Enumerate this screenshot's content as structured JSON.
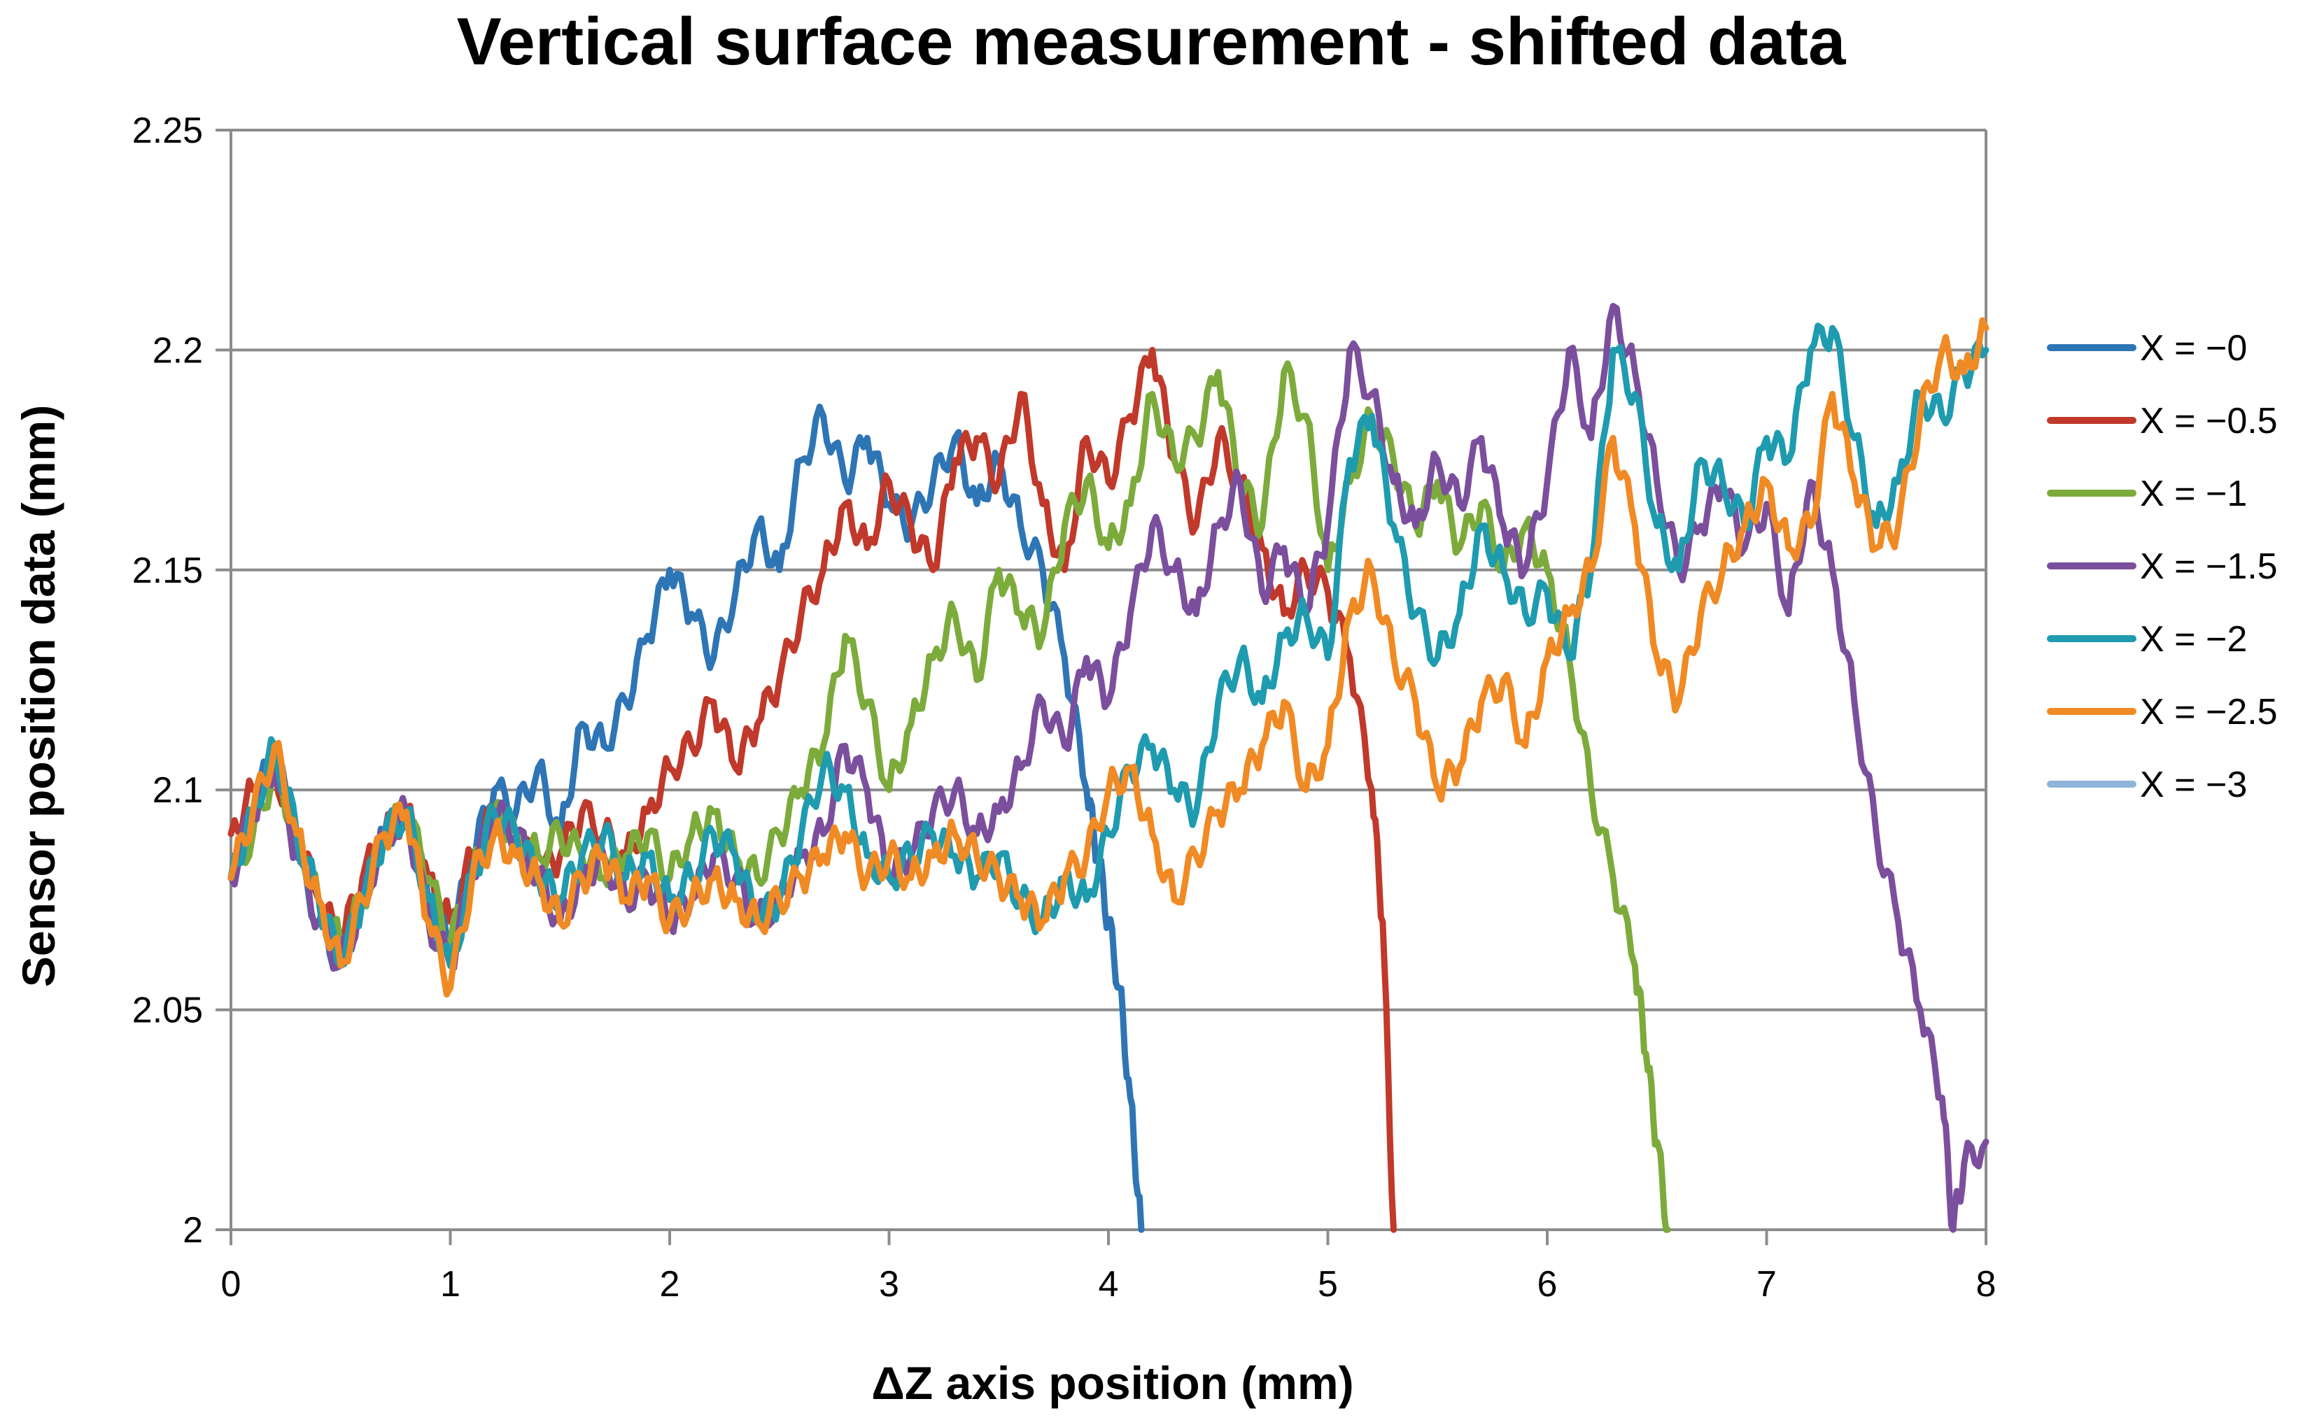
{
  "chart_data": {
    "type": "line",
    "title": "Vertical surface measurement - shifted data",
    "xlabel": "ΔZ axis position (mm)",
    "ylabel": "Sensor position data (mm)",
    "xlim": [
      0,
      8
    ],
    "ylim": [
      2,
      2.25
    ],
    "xticks": [
      0,
      1,
      2,
      3,
      4,
      5,
      6,
      7,
      8
    ],
    "yticks": [
      2,
      2.05,
      2.1,
      2.15,
      2.2,
      2.25
    ],
    "ytick_labels": [
      "2",
      "2.05",
      "2.1",
      "2.15",
      "2.2",
      "2.25"
    ],
    "grid": true,
    "legend_position": "right",
    "series": [
      {
        "name": "X = −0",
        "color": "#2e75b6",
        "x": [
          0,
          0.1,
          0.2,
          0.3,
          0.4,
          0.5,
          0.6,
          0.7,
          0.8,
          0.9,
          1.0,
          1.1,
          1.2,
          1.3,
          1.4,
          1.5,
          1.6,
          1.7,
          1.8,
          1.9,
          2.0,
          2.1,
          2.2,
          2.3,
          2.4,
          2.5,
          2.6,
          2.7,
          2.8,
          2.9,
          3.0,
          3.1,
          3.2,
          3.3,
          3.4,
          3.5,
          3.6,
          3.7,
          3.8,
          3.9,
          3.95,
          4.0,
          4.05,
          4.1,
          4.15
        ],
        "y": [
          2.08,
          2.095,
          2.11,
          2.085,
          2.07,
          2.06,
          2.075,
          2.09,
          2.095,
          2.075,
          2.065,
          2.085,
          2.1,
          2.095,
          2.105,
          2.09,
          2.115,
          2.11,
          2.12,
          2.135,
          2.15,
          2.14,
          2.13,
          2.145,
          2.16,
          2.15,
          2.175,
          2.185,
          2.17,
          2.18,
          2.165,
          2.16,
          2.17,
          2.18,
          2.165,
          2.175,
          2.16,
          2.15,
          2.13,
          2.1,
          2.085,
          2.07,
          2.055,
          2.03,
          2.0
        ]
      },
      {
        "name": "X = −0.5",
        "color": "#c0392b",
        "x": [
          0,
          0.1,
          0.2,
          0.3,
          0.4,
          0.5,
          0.6,
          0.7,
          0.8,
          0.9,
          1.0,
          1.1,
          1.2,
          1.3,
          1.4,
          1.5,
          1.6,
          1.7,
          1.8,
          1.9,
          2.0,
          2.1,
          2.2,
          2.3,
          2.4,
          2.5,
          2.6,
          2.7,
          2.8,
          2.9,
          3.0,
          3.1,
          3.2,
          3.3,
          3.4,
          3.5,
          3.6,
          3.7,
          3.8,
          3.9,
          4.0,
          4.1,
          4.2,
          4.3,
          4.4,
          4.5,
          4.6,
          4.7,
          4.8,
          4.9,
          5.0,
          5.1,
          5.2,
          5.25,
          5.3
        ],
        "y": [
          2.09,
          2.1,
          2.105,
          2.09,
          2.075,
          2.065,
          2.08,
          2.09,
          2.095,
          2.08,
          2.07,
          2.085,
          2.095,
          2.09,
          2.08,
          2.085,
          2.095,
          2.09,
          2.085,
          2.095,
          2.105,
          2.11,
          2.12,
          2.105,
          2.115,
          2.125,
          2.14,
          2.15,
          2.165,
          2.155,
          2.17,
          2.16,
          2.15,
          2.175,
          2.18,
          2.17,
          2.19,
          2.165,
          2.15,
          2.18,
          2.17,
          2.185,
          2.2,
          2.175,
          2.16,
          2.18,
          2.17,
          2.155,
          2.14,
          2.15,
          2.145,
          2.13,
          2.1,
          2.07,
          2.0
        ]
      },
      {
        "name": "X = −1",
        "color": "#7cab3c",
        "x": [
          0,
          0.1,
          0.2,
          0.3,
          0.4,
          0.5,
          0.6,
          0.7,
          0.8,
          0.9,
          1.0,
          1.1,
          1.2,
          1.3,
          1.4,
          1.5,
          1.6,
          1.7,
          1.8,
          1.9,
          2.0,
          2.1,
          2.2,
          2.3,
          2.4,
          2.5,
          2.6,
          2.7,
          2.8,
          2.9,
          3.0,
          3.1,
          3.2,
          3.3,
          3.4,
          3.5,
          3.6,
          3.7,
          3.8,
          3.9,
          4.0,
          4.1,
          4.2,
          4.3,
          4.4,
          4.5,
          4.6,
          4.7,
          4.8,
          4.9,
          5.0,
          5.1,
          5.2,
          5.3,
          5.4,
          5.5,
          5.6,
          5.7,
          5.8,
          5.9,
          6.0,
          6.1,
          6.2,
          6.3,
          6.4,
          6.45,
          6.5,
          6.55
        ],
        "y": [
          2.08,
          2.09,
          2.105,
          2.09,
          2.075,
          2.065,
          2.075,
          2.09,
          2.095,
          2.08,
          2.065,
          2.08,
          2.095,
          2.09,
          2.085,
          2.09,
          2.085,
          2.08,
          2.085,
          2.09,
          2.08,
          2.09,
          2.095,
          2.085,
          2.08,
          2.09,
          2.1,
          2.11,
          2.135,
          2.12,
          2.1,
          2.115,
          2.13,
          2.14,
          2.125,
          2.15,
          2.14,
          2.135,
          2.16,
          2.17,
          2.155,
          2.165,
          2.19,
          2.175,
          2.18,
          2.195,
          2.17,
          2.16,
          2.195,
          2.185,
          2.15,
          2.17,
          2.185,
          2.175,
          2.16,
          2.17,
          2.155,
          2.165,
          2.15,
          2.16,
          2.15,
          2.13,
          2.1,
          2.08,
          2.06,
          2.04,
          2.02,
          2.0
        ]
      },
      {
        "name": "X = −1.5",
        "color": "#7b4f9d",
        "x": [
          0,
          0.1,
          0.2,
          0.3,
          0.4,
          0.5,
          0.6,
          0.7,
          0.8,
          0.9,
          1.0,
          1.1,
          1.2,
          1.3,
          1.4,
          1.5,
          1.6,
          1.7,
          1.8,
          1.9,
          2.0,
          2.1,
          2.2,
          2.3,
          2.4,
          2.5,
          2.6,
          2.7,
          2.8,
          2.9,
          3.0,
          3.1,
          3.2,
          3.3,
          3.4,
          3.5,
          3.6,
          3.7,
          3.8,
          3.9,
          4.0,
          4.1,
          4.2,
          4.3,
          4.4,
          4.5,
          4.6,
          4.7,
          4.8,
          4.9,
          5.0,
          5.1,
          5.2,
          5.3,
          5.4,
          5.5,
          5.6,
          5.7,
          5.8,
          5.9,
          6.0,
          6.1,
          6.2,
          6.3,
          6.4,
          6.5,
          6.6,
          6.7,
          6.8,
          6.9,
          7.0,
          7.1,
          7.2,
          7.3,
          7.4,
          7.5,
          7.6,
          7.7,
          7.8,
          7.85,
          7.9,
          8.0
        ],
        "y": [
          2.08,
          2.095,
          2.105,
          2.085,
          2.07,
          2.06,
          2.075,
          2.09,
          2.095,
          2.07,
          2.06,
          2.08,
          2.095,
          2.09,
          2.08,
          2.07,
          2.08,
          2.085,
          2.075,
          2.08,
          2.07,
          2.075,
          2.085,
          2.08,
          2.07,
          2.075,
          2.085,
          2.09,
          2.11,
          2.1,
          2.08,
          2.085,
          2.095,
          2.1,
          2.09,
          2.095,
          2.105,
          2.12,
          2.11,
          2.13,
          2.12,
          2.14,
          2.16,
          2.15,
          2.14,
          2.16,
          2.17,
          2.145,
          2.155,
          2.14,
          2.16,
          2.2,
          2.19,
          2.17,
          2.16,
          2.175,
          2.165,
          2.18,
          2.16,
          2.15,
          2.17,
          2.2,
          2.18,
          2.21,
          2.195,
          2.17,
          2.15,
          2.16,
          2.17,
          2.155,
          2.165,
          2.14,
          2.17,
          2.15,
          2.12,
          2.09,
          2.07,
          2.05,
          2.03,
          2.0,
          2.015,
          2.02
        ]
      },
      {
        "name": "X = −2",
        "color": "#1f9bb0",
        "x": [
          0,
          0.1,
          0.2,
          0.3,
          0.4,
          0.5,
          0.6,
          0.7,
          0.8,
          0.9,
          1.0,
          1.1,
          1.2,
          1.3,
          1.4,
          1.5,
          1.6,
          1.7,
          1.8,
          1.9,
          2.0,
          2.1,
          2.2,
          2.3,
          2.4,
          2.5,
          2.6,
          2.7,
          2.8,
          2.9,
          3.0,
          3.1,
          3.2,
          3.3,
          3.4,
          3.5,
          3.6,
          3.7,
          3.8,
          3.9,
          4.0,
          4.1,
          4.2,
          4.3,
          4.4,
          4.5,
          4.6,
          4.7,
          4.8,
          4.9,
          5.0,
          5.1,
          5.2,
          5.3,
          5.4,
          5.5,
          5.6,
          5.7,
          5.8,
          5.9,
          6.0,
          6.1,
          6.2,
          6.3,
          6.4,
          6.5,
          6.6,
          6.7,
          6.8,
          6.9,
          7.0,
          7.1,
          7.2,
          7.3,
          7.4,
          7.5,
          7.6,
          7.7,
          7.8,
          7.9,
          8.0
        ],
        "y": [
          2.08,
          2.095,
          2.11,
          2.09,
          2.075,
          2.06,
          2.075,
          2.09,
          2.095,
          2.075,
          2.06,
          2.08,
          2.095,
          2.09,
          2.08,
          2.075,
          2.085,
          2.09,
          2.08,
          2.085,
          2.075,
          2.08,
          2.09,
          2.085,
          2.07,
          2.075,
          2.09,
          2.105,
          2.1,
          2.085,
          2.08,
          2.085,
          2.09,
          2.085,
          2.08,
          2.085,
          2.075,
          2.07,
          2.08,
          2.075,
          2.09,
          2.105,
          2.11,
          2.1,
          2.095,
          2.12,
          2.13,
          2.12,
          2.135,
          2.14,
          2.13,
          2.175,
          2.185,
          2.16,
          2.14,
          2.13,
          2.14,
          2.16,
          2.15,
          2.14,
          2.145,
          2.13,
          2.15,
          2.2,
          2.19,
          2.16,
          2.15,
          2.175,
          2.17,
          2.16,
          2.18,
          2.175,
          2.2,
          2.205,
          2.18,
          2.16,
          2.17,
          2.19,
          2.185,
          2.195,
          2.2
        ]
      },
      {
        "name": "X = −2.5",
        "color": "#f08a24",
        "x": [
          0,
          0.1,
          0.2,
          0.3,
          0.4,
          0.5,
          0.6,
          0.7,
          0.8,
          0.9,
          1.0,
          1.1,
          1.2,
          1.3,
          1.4,
          1.5,
          1.6,
          1.7,
          1.8,
          1.9,
          2.0,
          2.1,
          2.2,
          2.3,
          2.4,
          2.5,
          2.6,
          2.7,
          2.8,
          2.9,
          3.0,
          3.1,
          3.2,
          3.3,
          3.4,
          3.5,
          3.6,
          3.7,
          3.8,
          3.9,
          4.0,
          4.1,
          4.2,
          4.3,
          4.4,
          4.5,
          4.6,
          4.7,
          4.8,
          4.9,
          5.0,
          5.1,
          5.2,
          5.3,
          5.4,
          5.5,
          5.6,
          5.7,
          5.8,
          5.9,
          6.0,
          6.1,
          6.2,
          6.3,
          6.4,
          6.5,
          6.6,
          6.7,
          6.8,
          6.9,
          7.0,
          7.1,
          7.2,
          7.3,
          7.4,
          7.5,
          7.6,
          7.7,
          7.8,
          7.9,
          8.0
        ],
        "y": [
          2.08,
          2.095,
          2.11,
          2.09,
          2.075,
          2.06,
          2.075,
          2.09,
          2.095,
          2.07,
          2.055,
          2.08,
          2.09,
          2.085,
          2.08,
          2.07,
          2.08,
          2.085,
          2.075,
          2.08,
          2.07,
          2.075,
          2.08,
          2.075,
          2.07,
          2.075,
          2.08,
          2.085,
          2.09,
          2.08,
          2.085,
          2.08,
          2.085,
          2.09,
          2.085,
          2.08,
          2.075,
          2.07,
          2.08,
          2.085,
          2.1,
          2.105,
          2.09,
          2.075,
          2.085,
          2.095,
          2.1,
          2.11,
          2.12,
          2.1,
          2.11,
          2.14,
          2.15,
          2.13,
          2.12,
          2.1,
          2.105,
          2.12,
          2.125,
          2.11,
          2.13,
          2.14,
          2.15,
          2.18,
          2.16,
          2.13,
          2.12,
          2.14,
          2.15,
          2.16,
          2.17,
          2.155,
          2.16,
          2.19,
          2.17,
          2.155,
          2.16,
          2.185,
          2.2,
          2.195,
          2.205
        ]
      },
      {
        "name": "X = −3",
        "color": "#8eb4d9",
        "x": [],
        "y": []
      }
    ]
  }
}
